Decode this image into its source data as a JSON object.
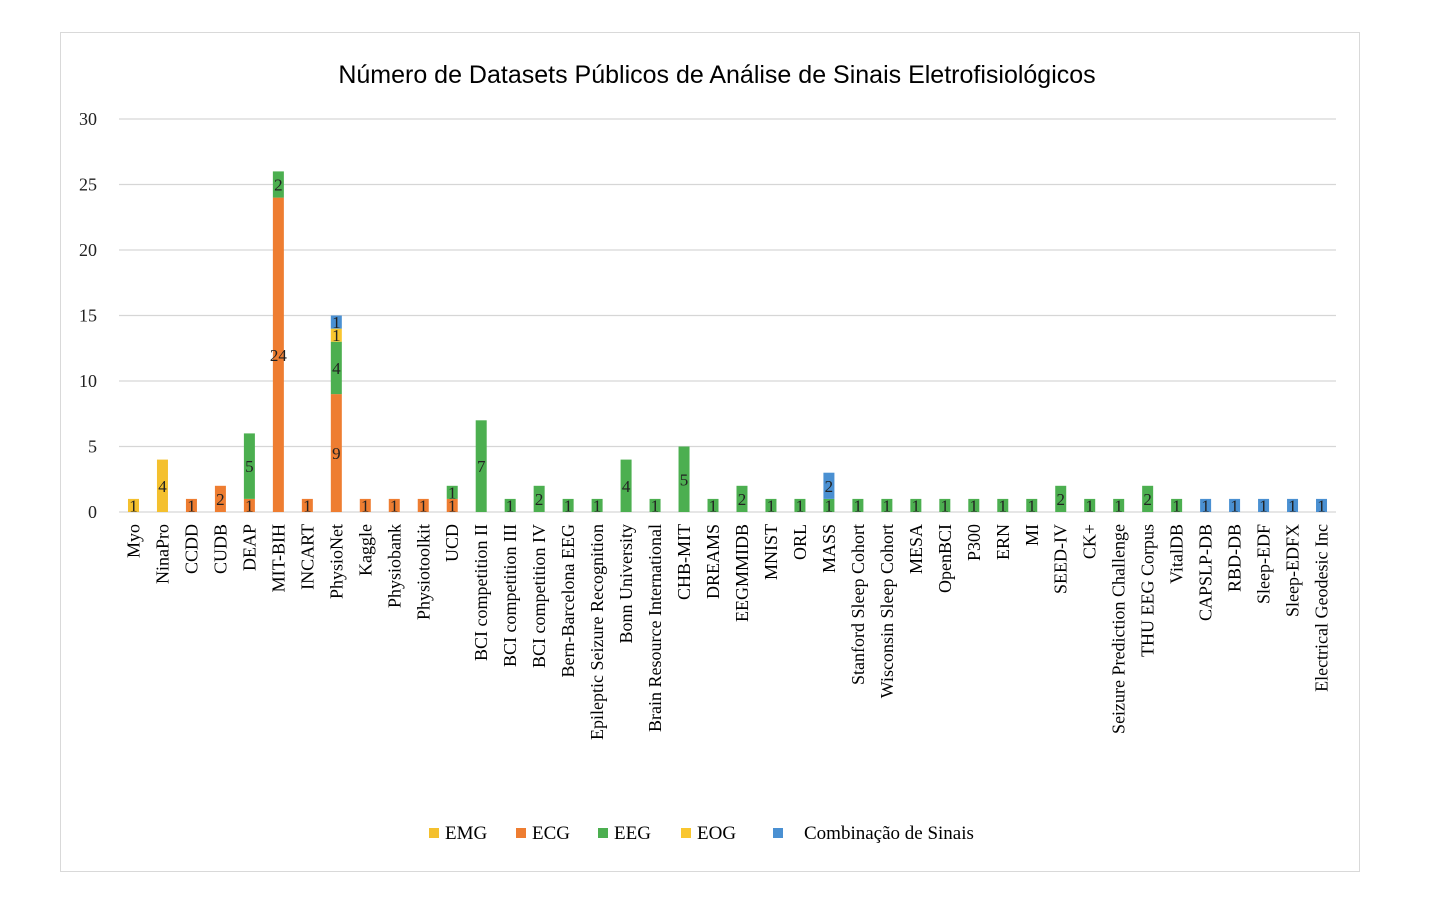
{
  "chart_data": {
    "type": "bar",
    "stacked": true,
    "title": "Número de Datasets Públicos de Análise de Sinais Eletrofisiológicos",
    "xlabel": "",
    "ylabel": "",
    "ylim": [
      0,
      30
    ],
    "yticks": [
      0,
      5,
      10,
      15,
      20,
      25,
      30
    ],
    "grid": true,
    "legend_position": "bottom",
    "categories": [
      "Myo",
      "NinaPro",
      "CCDD",
      "CUDB",
      "DEAP",
      "MIT-BIH",
      "INCART",
      "PhysioNet",
      "Kaggle",
      "Physiobank",
      "Physiotoolkit",
      "UCD",
      "BCI competition II",
      "BCI competition III",
      "BCI competition IV",
      "Bern-Barcelona EEG",
      "Epileptic Seizure Recognition",
      "Bonn University",
      "Brain Resource International",
      "CHB-MIT",
      "DREAMS",
      "EEGMMIDB",
      "MNIST",
      "ORL",
      "MASS",
      "Stanford Sleep Cohort",
      "Wisconsin Sleep Cohort",
      "MESA",
      "OpenBCI",
      "P300",
      "ERN",
      "MI",
      "SEED-IV",
      "CK+",
      "Seizure Prediction Challenge",
      "THU EEG Corpus",
      "VitalDB",
      "CAPSLP-DB",
      "RBD-DB",
      "Sleep-EDF",
      "Sleep-EDFX",
      "Electrical Geodesic Inc"
    ],
    "series": [
      {
        "name": "EMG",
        "color": "#f4c02e",
        "values": [
          1,
          4,
          0,
          0,
          0,
          0,
          0,
          0,
          0,
          0,
          0,
          0,
          0,
          0,
          0,
          0,
          0,
          0,
          0,
          0,
          0,
          0,
          0,
          0,
          0,
          0,
          0,
          0,
          0,
          0,
          0,
          0,
          0,
          0,
          0,
          0,
          0,
          0,
          0,
          0,
          0,
          0
        ]
      },
      {
        "name": "ECG",
        "color": "#ee7d31",
        "values": [
          0,
          0,
          1,
          2,
          1,
          24,
          1,
          9,
          1,
          1,
          1,
          1,
          0,
          0,
          0,
          0,
          0,
          0,
          0,
          0,
          0,
          0,
          0,
          0,
          0,
          0,
          0,
          0,
          0,
          0,
          0,
          0,
          0,
          0,
          0,
          0,
          0,
          0,
          0,
          0,
          0,
          0
        ]
      },
      {
        "name": "EEG",
        "color": "#4caf50",
        "values": [
          0,
          0,
          0,
          0,
          5,
          2,
          0,
          4,
          0,
          0,
          0,
          1,
          7,
          1,
          2,
          1,
          1,
          4,
          1,
          5,
          1,
          2,
          1,
          1,
          1,
          1,
          1,
          1,
          1,
          1,
          1,
          1,
          2,
          1,
          1,
          2,
          1,
          0,
          0,
          0,
          0,
          0
        ]
      },
      {
        "name": "EOG",
        "color": "#f9c62f",
        "values": [
          0,
          0,
          0,
          0,
          0,
          0,
          0,
          1,
          0,
          0,
          0,
          0,
          0,
          0,
          0,
          0,
          0,
          0,
          0,
          0,
          0,
          0,
          0,
          0,
          0,
          0,
          0,
          0,
          0,
          0,
          0,
          0,
          0,
          0,
          0,
          0,
          0,
          0,
          0,
          0,
          0,
          0
        ]
      },
      {
        "name": "Combinação de Sinais",
        "color": "#4a90d2",
        "values": [
          0,
          0,
          0,
          0,
          0,
          0,
          0,
          1,
          0,
          0,
          0,
          0,
          0,
          0,
          0,
          0,
          0,
          0,
          0,
          0,
          0,
          0,
          0,
          0,
          2,
          0,
          0,
          0,
          0,
          0,
          0,
          0,
          0,
          0,
          0,
          0,
          0,
          1,
          1,
          1,
          1,
          1
        ]
      }
    ]
  }
}
